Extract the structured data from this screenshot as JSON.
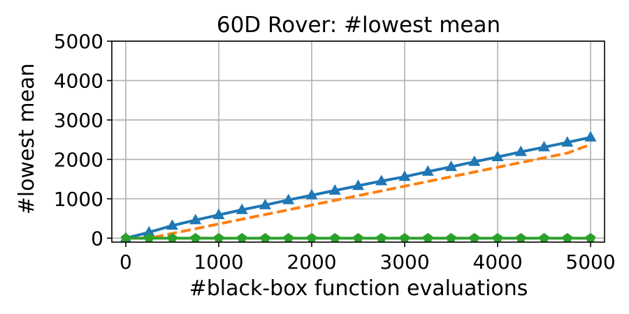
{
  "chart_data": {
    "type": "line",
    "title": "60D Rover: #lowest mean",
    "xlabel": "#black-box function evaluations",
    "ylabel": "#lowest mean",
    "xlim": [
      -150,
      5150
    ],
    "ylim": [
      -100,
      5000
    ],
    "xticks": [
      0,
      1000,
      2000,
      3000,
      4000,
      5000
    ],
    "yticks": [
      0,
      1000,
      2000,
      3000,
      4000,
      5000
    ],
    "grid": true,
    "series": [
      {
        "color": "#1f77b4",
        "linestyle": "solid",
        "marker": "triangle",
        "x": [
          0,
          250,
          500,
          750,
          1000,
          1250,
          1500,
          1750,
          2000,
          2250,
          2500,
          2750,
          3000,
          3250,
          3500,
          3750,
          4000,
          4250,
          4500,
          4750,
          5000
        ],
        "y": [
          0,
          150,
          320,
          460,
          590,
          720,
          840,
          970,
          1090,
          1210,
          1330,
          1450,
          1560,
          1690,
          1810,
          1940,
          2060,
          2190,
          2310,
          2430,
          2560
        ]
      },
      {
        "color": "#ff7f0e",
        "linestyle": "dashed",
        "marker": "none",
        "x": [
          0,
          250,
          500,
          750,
          1000,
          1250,
          1500,
          1750,
          2000,
          2250,
          2500,
          2750,
          3000,
          3250,
          3500,
          3750,
          4000,
          4250,
          4500,
          4750,
          5000
        ],
        "y": [
          0,
          0,
          120,
          240,
          360,
          480,
          600,
          720,
          840,
          960,
          1080,
          1200,
          1320,
          1440,
          1560,
          1680,
          1800,
          1920,
          2040,
          2160,
          2380
        ]
      },
      {
        "color": "#2ca02c",
        "linestyle": "solid",
        "marker": "pentagon",
        "x": [
          0,
          250,
          500,
          750,
          1000,
          1250,
          1500,
          1750,
          2000,
          2250,
          2500,
          2750,
          3000,
          3250,
          3500,
          3750,
          4000,
          4250,
          4500,
          4750,
          5000
        ],
        "y": [
          0,
          0,
          0,
          0,
          0,
          0,
          0,
          0,
          0,
          0,
          0,
          0,
          0,
          0,
          0,
          0,
          0,
          0,
          0,
          0,
          0
        ]
      }
    ]
  }
}
